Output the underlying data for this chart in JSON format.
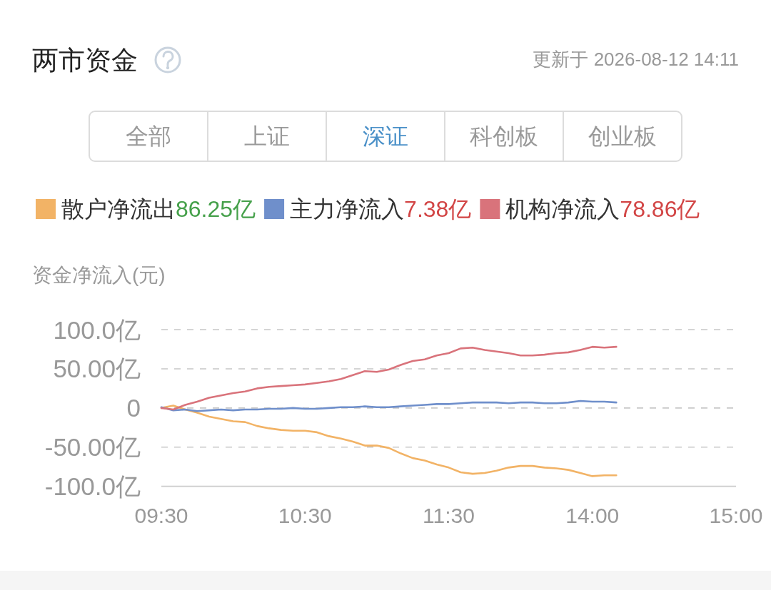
{
  "chart_data": {
    "type": "line",
    "title": "两市资金",
    "subtitle": "更新于 2026-08-12 14:11",
    "annotations": [
      "全部",
      "上证",
      "深证",
      "科创板",
      "创业板"
    ],
    "ylabel": "资金净流入(元)",
    "categories": [
      "09:30",
      null,
      null,
      null,
      null,
      null,
      null,
      null,
      null,
      null,
      null,
      null,
      "10:30",
      null,
      null,
      null,
      null,
      null,
      null,
      null,
      null,
      null,
      null,
      null,
      "11:30",
      null,
      null,
      null,
      null,
      null,
      null,
      null,
      null,
      null,
      null,
      null,
      "14:00",
      null,
      null,
      null,
      null,
      null,
      null,
      null,
      null,
      null,
      null,
      null,
      "15:00"
    ],
    "ylim": [
      -100,
      100
    ],
    "yticks": [
      {
        "value": 100,
        "label": "100.0亿"
      },
      {
        "value": 50,
        "label": "50.00亿"
      },
      0,
      {
        "value": -50,
        "label": "-50.00亿"
      },
      {
        "value": -100,
        "label": "-100.0亿"
      }
    ],
    "grid": "y",
    "legend": "top",
    "series": [
      {
        "name": "散户净流出86.25亿",
        "color": "#f2b366",
        "values": [
          0,
          3,
          -2,
          -6,
          -11,
          -14,
          -17,
          -18,
          -23,
          -26,
          -28,
          -29,
          -29,
          -31,
          -36,
          -39,
          -43,
          -48,
          -48,
          -51,
          -58,
          -64,
          -67,
          -72,
          -76,
          -82,
          -84,
          -83,
          -80,
          -76,
          -74,
          -74,
          -76,
          -77,
          -79,
          -83,
          -87,
          -86,
          -86,
          null,
          null,
          null,
          null,
          null,
          null,
          null,
          null,
          null,
          null
        ]
      },
      {
        "name": "主力净流入7.38亿",
        "color": "#6f8fcb",
        "values": [
          1,
          -3,
          -2,
          -4,
          -3,
          -2,
          -3,
          -2,
          -2,
          -1,
          -1,
          0,
          -1,
          -1,
          0,
          1,
          1,
          2,
          1,
          1,
          2,
          3,
          4,
          5,
          5,
          6,
          7,
          7,
          7,
          6,
          7,
          7,
          6,
          6,
          7,
          9,
          8,
          8,
          7,
          null,
          null,
          null,
          null,
          null,
          null,
          null,
          null,
          null,
          null
        ]
      },
      {
        "name": "机构净流入78.86亿",
        "color": "#d9737b",
        "values": [
          0,
          -2,
          4,
          8,
          13,
          16,
          19,
          21,
          25,
          27,
          28,
          29,
          30,
          32,
          34,
          37,
          42,
          47,
          46,
          49,
          55,
          60,
          62,
          67,
          70,
          76,
          77,
          74,
          72,
          70,
          67,
          67,
          68,
          70,
          71,
          74,
          78,
          77,
          78,
          null,
          null,
          null,
          null,
          null,
          null,
          null,
          null,
          null,
          null
        ]
      }
    ]
  }
}
